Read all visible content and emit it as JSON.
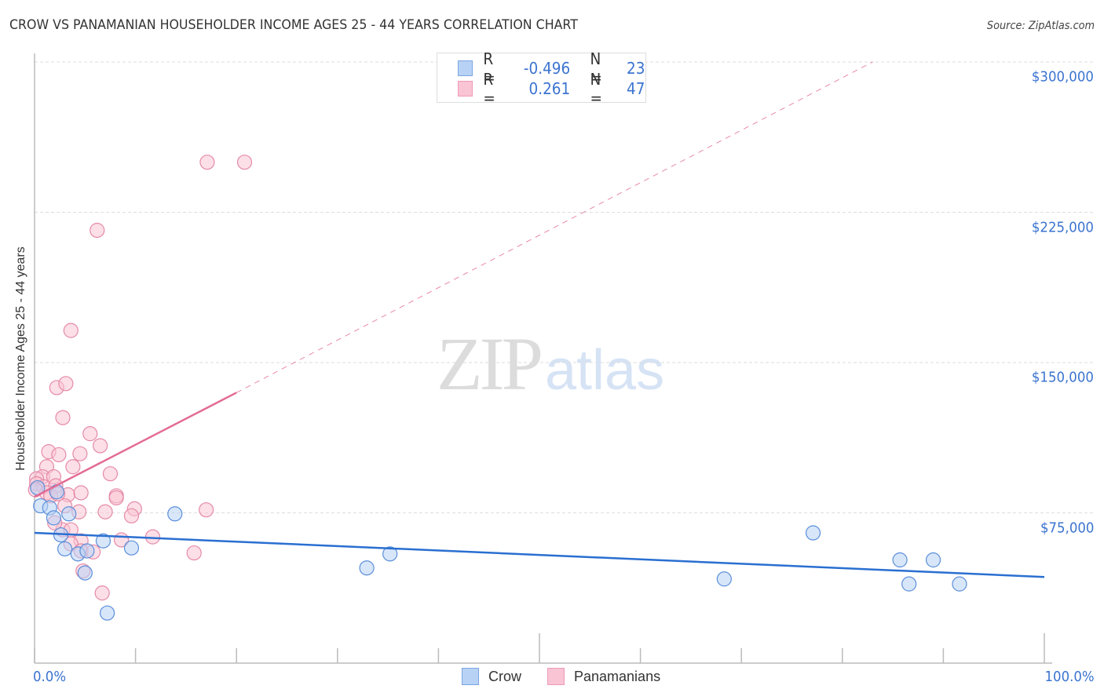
{
  "header": {
    "title": "CROW VS PANAMANIAN HOUSEHOLDER INCOME AGES 25 - 44 YEARS CORRELATION CHART",
    "source": "Source: ZipAtlas.com"
  },
  "legend_top": {
    "rows": [
      {
        "series": "Crow",
        "r_label": "R =",
        "r_value": "-0.496",
        "n_label": "N =",
        "n_value": "23"
      },
      {
        "series": "Panamanians",
        "r_label": "R =",
        "r_value": "0.261",
        "n_label": "N =",
        "n_value": "47"
      }
    ]
  },
  "legend_bottom": {
    "items": [
      {
        "label": "Crow"
      },
      {
        "label": "Panamanians"
      }
    ]
  },
  "axes": {
    "ylabel": "Householder Income Ages 25 - 44 years",
    "x_min_label": "0.0%",
    "x_max_label": "100.0%",
    "y_ticks": [
      {
        "value": 300000,
        "label": "$300,000"
      },
      {
        "value": 225000,
        "label": "$225,000"
      },
      {
        "value": 150000,
        "label": "$150,000"
      },
      {
        "value": 75000,
        "label": "$75,000"
      }
    ]
  },
  "watermark": {
    "part1": "ZIP",
    "part2": "atlas"
  },
  "colors": {
    "crow_fill": "#b8d2f5",
    "crow_stroke": "#5b8fd9",
    "crow_line": "#2a6fd1",
    "pan_fill": "#f9c4d4",
    "pan_stroke": "#e58aa8",
    "pan_line": "#e36b95",
    "tick_label": "#3b74cf",
    "grid": "#dddddd"
  },
  "chart_data": {
    "type": "scatter",
    "title": "CROW VS PANAMANIAN HOUSEHOLDER INCOME AGES 25 - 44 YEARS CORRELATION CHART",
    "xlabel": "",
    "ylabel": "Householder Income Ages 25 - 44 years",
    "xlim": [
      0,
      100
    ],
    "ylim": [
      0,
      322000
    ],
    "x_unit": "%",
    "y_unit": "$",
    "grid": {
      "y": true,
      "x": false
    },
    "legend_position": "bottom",
    "series": [
      {
        "name": "Crow",
        "r": -0.496,
        "n": 23,
        "trendline": {
          "x": [
            0,
            100
          ],
          "y": [
            65000,
            43000
          ],
          "style": "solid"
        },
        "points": [
          [
            0.6,
            78500
          ],
          [
            1.5,
            77500
          ],
          [
            2.2,
            85500
          ],
          [
            1.9,
            72500
          ],
          [
            3.4,
            74500
          ],
          [
            2.6,
            64000
          ],
          [
            3.0,
            57000
          ],
          [
            4.3,
            54500
          ],
          [
            5.2,
            56000
          ],
          [
            6.8,
            61000
          ],
          [
            9.6,
            57500
          ],
          [
            5.0,
            45000
          ],
          [
            7.2,
            25000
          ],
          [
            13.9,
            74500
          ],
          [
            32.9,
            47500
          ],
          [
            35.2,
            54500
          ],
          [
            68.3,
            42000
          ],
          [
            77.1,
            65000
          ],
          [
            85.7,
            51500
          ],
          [
            89.0,
            51500
          ],
          [
            86.6,
            39500
          ],
          [
            91.6,
            39500
          ],
          [
            0.3,
            87500
          ]
        ]
      },
      {
        "name": "Panamanians",
        "r": 0.261,
        "n": 47,
        "trendline": {
          "x": [
            0,
            20
          ],
          "y": [
            83000,
            135000
          ],
          "style": "solid",
          "extension": {
            "x": [
              20,
              83
            ],
            "y": [
              135000,
              300000
            ],
            "style": "dashed"
          }
        },
        "points": [
          [
            17.1,
            250000
          ],
          [
            20.8,
            250000
          ],
          [
            6.2,
            216000
          ],
          [
            3.6,
            166000
          ],
          [
            2.2,
            137500
          ],
          [
            3.1,
            139500
          ],
          [
            2.8,
            122500
          ],
          [
            5.5,
            114500
          ],
          [
            6.5,
            108500
          ],
          [
            1.4,
            105500
          ],
          [
            4.5,
            104500
          ],
          [
            2.4,
            104000
          ],
          [
            1.2,
            98000
          ],
          [
            3.8,
            98000
          ],
          [
            0.8,
            93000
          ],
          [
            0.2,
            92000
          ],
          [
            1.9,
            93000
          ],
          [
            0.2,
            89500
          ],
          [
            0.9,
            88000
          ],
          [
            2.1,
            88500
          ],
          [
            1.2,
            85000
          ],
          [
            3.3,
            84000
          ],
          [
            4.6,
            85000
          ],
          [
            0.1,
            86500
          ],
          [
            1.6,
            83500
          ],
          [
            2.3,
            84500
          ],
          [
            7.5,
            94500
          ],
          [
            8.1,
            83500
          ],
          [
            8.1,
            82500
          ],
          [
            9.9,
            77000
          ],
          [
            9.6,
            73500
          ],
          [
            7.0,
            75500
          ],
          [
            17.0,
            76500
          ],
          [
            3.0,
            78500
          ],
          [
            4.4,
            75500
          ],
          [
            2.8,
            66500
          ],
          [
            3.6,
            66500
          ],
          [
            4.6,
            61000
          ],
          [
            11.7,
            63000
          ],
          [
            8.6,
            61500
          ],
          [
            3.6,
            59500
          ],
          [
            4.6,
            56000
          ],
          [
            5.8,
            55500
          ],
          [
            15.8,
            55000
          ],
          [
            4.8,
            46000
          ],
          [
            6.7,
            35000
          ],
          [
            2.0,
            70000
          ]
        ]
      }
    ]
  }
}
